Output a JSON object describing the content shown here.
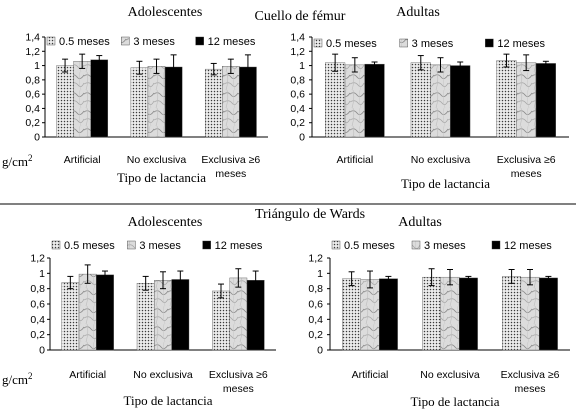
{
  "section_titles": {
    "top": "Cuello de fémur",
    "bottom": "Triángulo de Wards"
  },
  "unit_label": "g/cm",
  "unit_exponent": "2",
  "colors": {
    "bar_fill_0": "#ececec",
    "bar_fill_1": "#dcdcdc",
    "bar_fill_2": "#000000",
    "pattern_dot": "#3a3a3a",
    "marble_vein": "#8a8a8a",
    "separator": "#000000"
  },
  "chart_data": [
    {
      "type": "bar",
      "panel_title": "Adolescentes",
      "xlabel": "Tipo de lactancia",
      "categories": [
        "Artificial",
        "No exclusiva",
        "Exclusiva ≥6 meses"
      ],
      "ylim": [
        0,
        1.4
      ],
      "yticks": [
        "0",
        "0,2",
        "0,4",
        "0,6",
        "0,8",
        "1",
        "1,2",
        "1,4"
      ],
      "legend_position": "top",
      "series": [
        {
          "name": "0.5 meses",
          "values": [
            1.0,
            0.97,
            0.95
          ],
          "errors": [
            0.09,
            0.09,
            0.08
          ]
        },
        {
          "name": "3 meses",
          "values": [
            1.06,
            0.99,
            0.99
          ],
          "errors": [
            0.1,
            0.1,
            0.1
          ]
        },
        {
          "name": "12 meses",
          "values": [
            1.08,
            0.98,
            0.98
          ],
          "errors": [
            0.06,
            0.17,
            0.17
          ]
        }
      ]
    },
    {
      "type": "bar",
      "panel_title": "Adultas",
      "xlabel": "Tipo de lactancia",
      "categories": [
        "Artificial",
        "No exclusiva",
        "Exclusiva ≥6 meses"
      ],
      "ylim": [
        0,
        1.4
      ],
      "yticks": [
        "0",
        "0,2",
        "0,4",
        "0,6",
        "0,8",
        "1",
        "1,2",
        "1,4"
      ],
      "legend_position": "top",
      "series": [
        {
          "name": "0.5 meses",
          "values": [
            1.04,
            1.04,
            1.07
          ],
          "errors": [
            0.12,
            0.1,
            0.09
          ]
        },
        {
          "name": "3 meses",
          "values": [
            1.01,
            1.01,
            1.04
          ],
          "errors": [
            0.1,
            0.1,
            0.11
          ]
        },
        {
          "name": "12 meses",
          "values": [
            1.02,
            1.0,
            1.03
          ],
          "errors": [
            0.03,
            0.05,
            0.03
          ]
        }
      ]
    },
    {
      "type": "bar",
      "panel_title": "Adolescentes",
      "xlabel": "Tipo de lactancia",
      "categories": [
        "Artificial",
        "No exclusiva",
        "Exclusiva ≥6 meses"
      ],
      "ylim": [
        0,
        1.2
      ],
      "yticks": [
        "0",
        "0,2",
        "0,4",
        "0,6",
        "0,8",
        "1",
        "1,2"
      ],
      "legend_position": "top",
      "series": [
        {
          "name": "0.5 meses",
          "values": [
            0.88,
            0.87,
            0.77
          ],
          "errors": [
            0.08,
            0.09,
            0.09
          ]
        },
        {
          "name": "3 meses",
          "values": [
            0.99,
            0.91,
            0.94
          ],
          "errors": [
            0.12,
            0.11,
            0.12
          ]
        },
        {
          "name": "12 meses",
          "values": [
            0.98,
            0.92,
            0.91
          ],
          "errors": [
            0.05,
            0.11,
            0.12
          ]
        }
      ]
    },
    {
      "type": "bar",
      "panel_title": "Adultas",
      "xlabel": "Tipo de lactancia",
      "categories": [
        "Artificial",
        "No exclusiva",
        "Exclusiva ≥6 meses"
      ],
      "ylim": [
        0,
        1.2
      ],
      "yticks": [
        "0",
        "0,2",
        "0,4",
        "0,6",
        "0,8",
        "1",
        "1,2"
      ],
      "legend_position": "top",
      "series": [
        {
          "name": "0.5 meses",
          "values": [
            0.93,
            0.95,
            0.96
          ],
          "errors": [
            0.09,
            0.11,
            0.09
          ]
        },
        {
          "name": "3 meses",
          "values": [
            0.92,
            0.95,
            0.95
          ],
          "errors": [
            0.11,
            0.1,
            0.1
          ]
        },
        {
          "name": "12 meses",
          "values": [
            0.93,
            0.94,
            0.94
          ],
          "errors": [
            0.03,
            0.02,
            0.02
          ]
        }
      ]
    }
  ]
}
